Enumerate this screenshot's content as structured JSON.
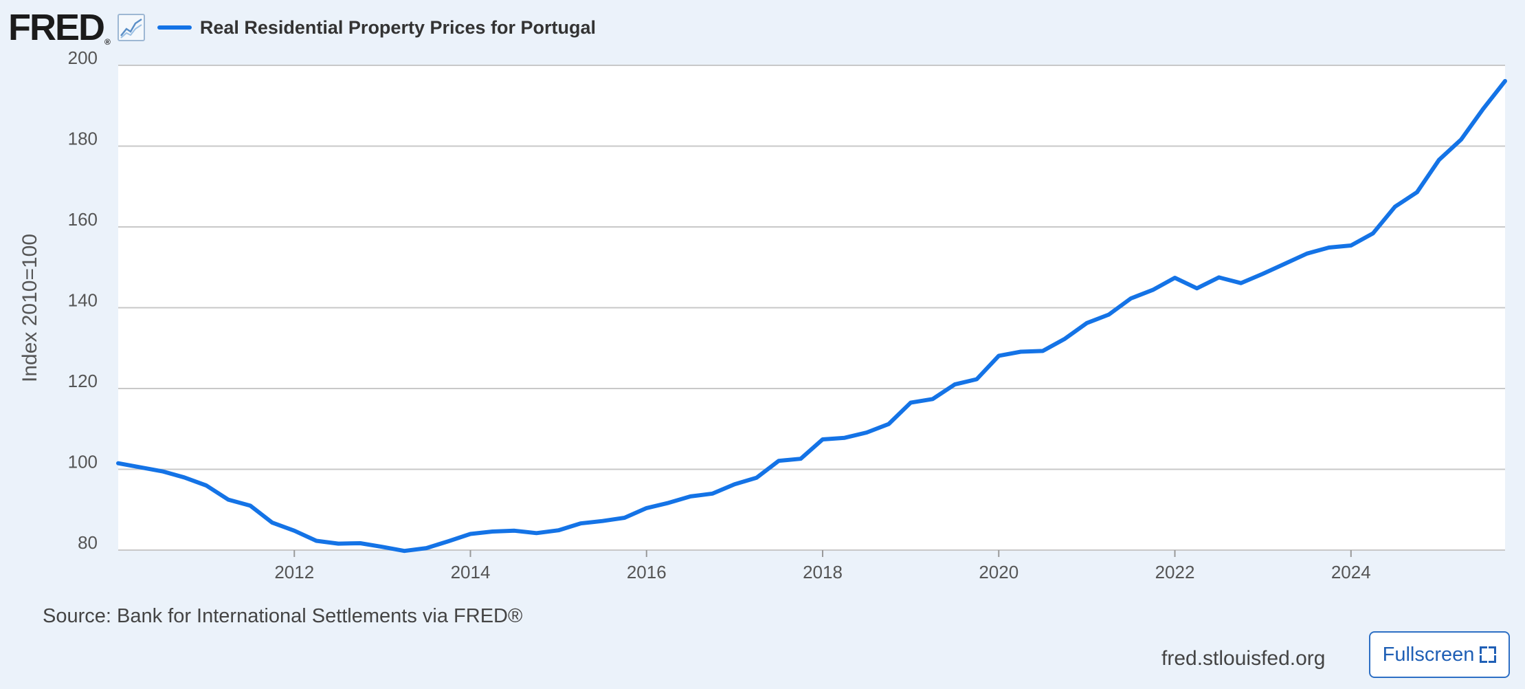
{
  "header": {
    "logo_text": "FRED",
    "logo_reg": "®",
    "icon": "line-chart-icon",
    "legend_label": "Real Residential Property Prices for Portugal"
  },
  "source_text": "Source: Bank for International Settlements via FRED®",
  "site_text": "fred.stlouisfed.org",
  "fullscreen_label": "Fullscreen",
  "colors": {
    "line": "#1473e6",
    "background": "#ebf2fa",
    "plot_background": "#ffffff",
    "grid": "#c8c8c8"
  },
  "chart_data": {
    "type": "line",
    "title": "",
    "xlabel": "",
    "ylabel": "Index 2010=100",
    "ylim": [
      80,
      200
    ],
    "yticks": [
      80,
      100,
      120,
      140,
      160,
      180,
      200
    ],
    "xticks": [
      2012,
      2014,
      2016,
      2018,
      2020,
      2022,
      2024
    ],
    "xlim": [
      2010.0,
      2025.75
    ],
    "grid": true,
    "legend": "top-left",
    "series": [
      {
        "name": "Real Residential Property Prices for Portugal",
        "x": [
          2010.0,
          2010.25,
          2010.5,
          2010.75,
          2011.0,
          2011.25,
          2011.5,
          2011.75,
          2012.0,
          2012.25,
          2012.5,
          2012.75,
          2013.0,
          2013.25,
          2013.5,
          2013.75,
          2014.0,
          2014.25,
          2014.5,
          2014.75,
          2015.0,
          2015.25,
          2015.5,
          2015.75,
          2016.0,
          2016.25,
          2016.5,
          2016.75,
          2017.0,
          2017.25,
          2017.5,
          2017.75,
          2018.0,
          2018.25,
          2018.5,
          2018.75,
          2019.0,
          2019.25,
          2019.5,
          2019.75,
          2020.0,
          2020.25,
          2020.5,
          2020.75,
          2021.0,
          2021.25,
          2021.5,
          2021.75,
          2022.0,
          2022.25,
          2022.5,
          2022.75,
          2023.0,
          2023.25,
          2023.5,
          2023.75,
          2024.0,
          2024.25,
          2024.5,
          2024.75,
          2025.0,
          2025.25,
          2025.5,
          2025.75
        ],
        "values": [
          101.5,
          100.5,
          99.5,
          98.0,
          96.0,
          92.5,
          91.0,
          86.8,
          84.8,
          82.3,
          81.6,
          81.7,
          80.8,
          79.8,
          80.5,
          82.2,
          84.0,
          84.6,
          84.8,
          84.2,
          84.9,
          86.6,
          87.2,
          88.0,
          90.4,
          91.7,
          93.3,
          94.0,
          96.3,
          97.9,
          102.1,
          102.6,
          107.4,
          107.8,
          109.1,
          111.2,
          116.5,
          117.4,
          121.0,
          122.3,
          128.1,
          129.1,
          129.3,
          132.3,
          136.2,
          138.3,
          142.3,
          144.4,
          147.4,
          144.8,
          147.5,
          146.1,
          148.4,
          150.9,
          153.4,
          154.9,
          155.4,
          158.4,
          165.0,
          168.6,
          176.6,
          181.6,
          189.2,
          196.1
        ]
      }
    ]
  }
}
